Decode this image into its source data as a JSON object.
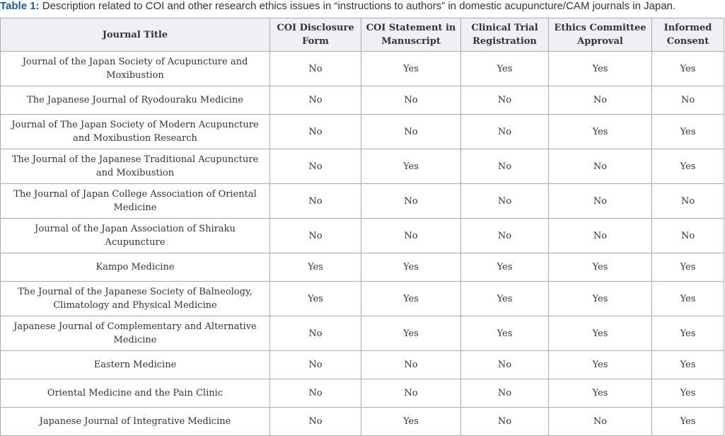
{
  "caption": {
    "label": "Table 1:",
    "text": "Description related to COI and other research ethics issues in “instructions to authors” in domestic acupuncture/CAM journals in Japan."
  },
  "table": {
    "headers": [
      "Journal Title",
      "COI Disclosure Form",
      "COI Statement in Manuscript",
      "Clinical Trial Registration",
      "Ethics Committee Approval",
      "Informed Consent"
    ],
    "rows": [
      [
        "Journal of the Japan Society of Acupuncture and Moxibustion",
        "No",
        "Yes",
        "Yes",
        "Yes",
        "Yes"
      ],
      [
        "The Japanese Journal of Ryodouraku Medicine",
        "No",
        "No",
        "No",
        "No",
        "No"
      ],
      [
        "Journal of The Japan Society of Modern Acupuncture and Moxibustion Research",
        "No",
        "No",
        "No",
        "Yes",
        "Yes"
      ],
      [
        "The Journal of the Japanese Traditional Acupuncture and Moxibustion",
        "No",
        "Yes",
        "No",
        "No",
        "Yes"
      ],
      [
        "The Journal of Japan College Association of Oriental Medicine",
        "No",
        "No",
        "No",
        "No",
        "No"
      ],
      [
        "Journal of the Japan Association of Shiraku Acupuncture",
        "No",
        "No",
        "No",
        "No",
        "No"
      ],
      [
        "Kampo Medicine",
        "Yes",
        "Yes",
        "Yes",
        "Yes",
        "Yes"
      ],
      [
        "The Journal of the Japanese Society of Balneology, Climatology and Physical Medicine",
        "Yes",
        "Yes",
        "Yes",
        "Yes",
        "Yes"
      ],
      [
        "Japanese Journal of Complementary and Alternative Medicine",
        "No",
        "Yes",
        "Yes",
        "Yes",
        "Yes"
      ],
      [
        "Eastern Medicine",
        "No",
        "No",
        "No",
        "Yes",
        "Yes"
      ],
      [
        "Oriental Medicine and the Pain Clinic",
        "No",
        "No",
        "No",
        "Yes",
        "Yes"
      ],
      [
        "Japanese Journal of Integrative Medicine",
        "No",
        "Yes",
        "No",
        "No",
        "Yes"
      ]
    ]
  }
}
